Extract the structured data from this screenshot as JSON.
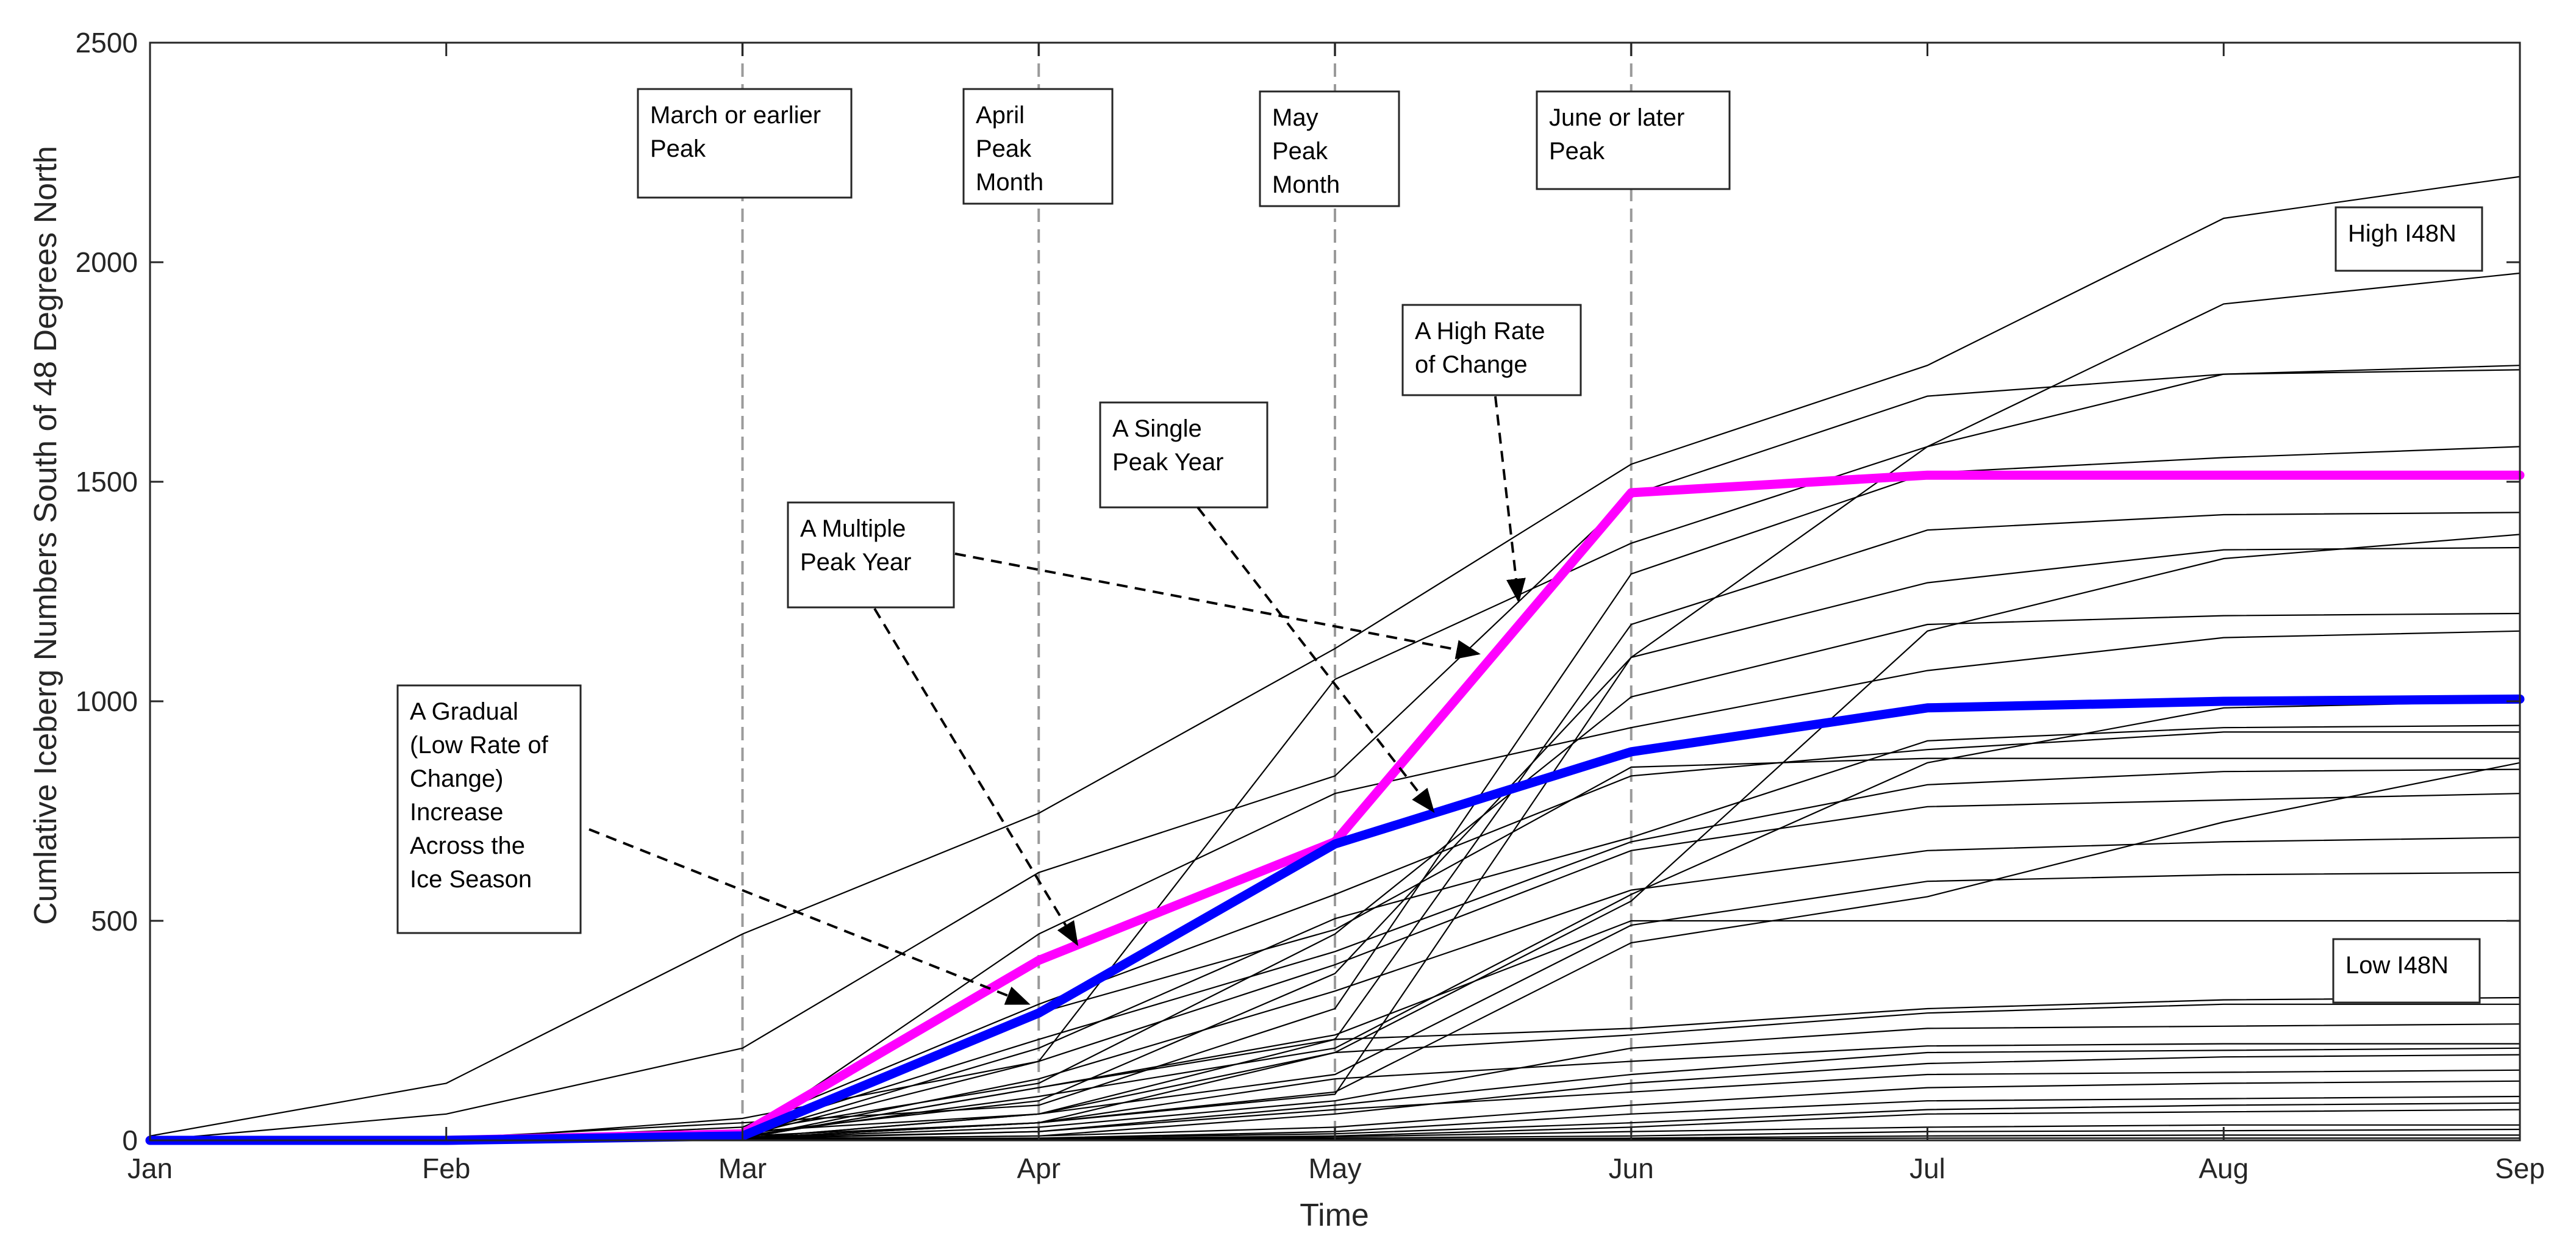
{
  "chart_data": {
    "type": "line",
    "xlabel": "Time",
    "ylabel": "Cumlative Iceberg Numbers South of 48 Degrees North",
    "categories": [
      "Jan",
      "Feb",
      "Mar",
      "Apr",
      "May",
      "Jun",
      "Jul",
      "Aug",
      "Sep"
    ],
    "ylim": [
      0,
      2500
    ],
    "yticks": [
      0,
      500,
      1000,
      1500,
      2000,
      2500
    ],
    "grid": false,
    "reference_lines": [
      {
        "x": 2,
        "label": "Mar"
      },
      {
        "x": 3,
        "label": "Apr"
      },
      {
        "x": 4,
        "label": "May"
      },
      {
        "x": 5,
        "label": "Jun"
      }
    ],
    "highlight_series": [
      {
        "name": "A Multiple Peak Year",
        "color": "#ff00ff",
        "values": [
          0,
          0,
          15,
          410,
          680,
          1475,
          1515,
          1515,
          1515
        ]
      },
      {
        "name": "A Single Peak Year",
        "color": "#0000ff",
        "values": [
          0,
          0,
          10,
          290,
          675,
          885,
          985,
          1000,
          1005
        ]
      }
    ],
    "series": [
      {
        "values": [
          10,
          130,
          470,
          745,
          1120,
          1540,
          1765,
          2100,
          2195
        ]
      },
      {
        "values": [
          0,
          60,
          210,
          610,
          830,
          1470,
          1695,
          1745,
          1765
        ]
      },
      {
        "values": [
          0,
          0,
          50,
          180,
          1050,
          1360,
          1580,
          1905,
          1975
        ]
      },
      {
        "values": [
          0,
          5,
          40,
          80,
          300,
          1290,
          1520,
          1555,
          1580
        ]
      },
      {
        "values": [
          0,
          0,
          20,
          60,
          230,
          1175,
          1390,
          1425,
          1430
        ]
      },
      {
        "values": [
          0,
          0,
          10,
          40,
          105,
          1100,
          1580,
          1745,
          1755
        ]
      },
      {
        "values": [
          0,
          0,
          15,
          90,
          380,
          1100,
          1270,
          1345,
          1350
        ]
      },
      {
        "values": [
          0,
          0,
          20,
          130,
          470,
          1010,
          1175,
          1195,
          1200
        ]
      },
      {
        "values": [
          0,
          0,
          10,
          470,
          790,
          940,
          1070,
          1145,
          1160
        ]
      },
      {
        "values": [
          0,
          0,
          5,
          40,
          200,
          545,
          1160,
          1325,
          1380
        ]
      },
      {
        "values": [
          0,
          0,
          30,
          310,
          560,
          830,
          890,
          930,
          930
        ]
      },
      {
        "values": [
          0,
          0,
          10,
          210,
          505,
          690,
          910,
          940,
          945
        ]
      },
      {
        "values": [
          0,
          0,
          15,
          290,
          480,
          850,
          870,
          870,
          870
        ]
      },
      {
        "values": [
          0,
          0,
          20,
          230,
          430,
          680,
          810,
          840,
          845
        ]
      },
      {
        "values": [
          0,
          0,
          10,
          180,
          400,
          660,
          760,
          775,
          790
        ]
      },
      {
        "values": [
          0,
          0,
          5,
          140,
          340,
          570,
          660,
          680,
          690
        ]
      },
      {
        "values": [
          0,
          0,
          10,
          100,
          210,
          560,
          860,
          985,
          1000
        ]
      },
      {
        "values": [
          0,
          0,
          5,
          60,
          150,
          490,
          590,
          605,
          610
        ]
      },
      {
        "values": [
          0,
          0,
          5,
          40,
          110,
          450,
          555,
          725,
          860
        ]
      },
      {
        "values": [
          0,
          0,
          5,
          120,
          240,
          500,
          500,
          500,
          500
        ]
      },
      {
        "values": [
          0,
          0,
          5,
          120,
          230,
          255,
          300,
          320,
          325
        ]
      },
      {
        "values": [
          0,
          0,
          5,
          60,
          200,
          240,
          290,
          310,
          310
        ]
      },
      {
        "values": [
          0,
          0,
          5,
          30,
          90,
          210,
          255,
          260,
          265
        ]
      },
      {
        "values": [
          0,
          0,
          5,
          40,
          140,
          180,
          215,
          220,
          220
        ]
      },
      {
        "values": [
          0,
          0,
          5,
          20,
          80,
          150,
          200,
          205,
          210
        ]
      },
      {
        "values": [
          0,
          0,
          3,
          10,
          60,
          130,
          175,
          190,
          195
        ]
      },
      {
        "values": [
          0,
          0,
          3,
          20,
          70,
          110,
          150,
          155,
          160
        ]
      },
      {
        "values": [
          0,
          0,
          2,
          10,
          30,
          80,
          120,
          130,
          135
        ]
      },
      {
        "values": [
          0,
          0,
          2,
          5,
          20,
          60,
          90,
          95,
          100
        ]
      },
      {
        "values": [
          0,
          0,
          1,
          5,
          15,
          40,
          70,
          80,
          85
        ]
      },
      {
        "values": [
          0,
          0,
          1,
          3,
          10,
          30,
          60,
          65,
          70
        ]
      },
      {
        "values": [
          0,
          0,
          1,
          2,
          8,
          20,
          30,
          35,
          35
        ]
      },
      {
        "values": [
          0,
          0,
          1,
          2,
          5,
          10,
          20,
          22,
          25
        ]
      },
      {
        "values": [
          0,
          0,
          0,
          1,
          2,
          5,
          10,
          12,
          12
        ]
      },
      {
        "values": [
          0,
          0,
          0,
          1,
          1,
          3,
          5,
          5,
          5
        ]
      }
    ],
    "annotations": [
      {
        "id": "march-peak",
        "lines": [
          "March or earlier",
          "Peak"
        ],
        "type": "label"
      },
      {
        "id": "april-peak",
        "lines": [
          "April",
          "Peak",
          "Month"
        ],
        "type": "label"
      },
      {
        "id": "may-peak",
        "lines": [
          "May",
          "Peak",
          "Month"
        ],
        "type": "label"
      },
      {
        "id": "june-peak",
        "lines": [
          "June or later",
          "Peak"
        ],
        "type": "label"
      },
      {
        "id": "high-i48n",
        "lines": [
          "High I48N"
        ],
        "type": "label"
      },
      {
        "id": "low-i48n",
        "lines": [
          "Low I48N"
        ],
        "type": "label"
      },
      {
        "id": "high-rate",
        "lines": [
          "A High Rate",
          "of Change"
        ],
        "type": "callout"
      },
      {
        "id": "single-peak",
        "lines": [
          "A Single",
          "Peak Year"
        ],
        "type": "callout"
      },
      {
        "id": "multiple-peak",
        "lines": [
          "A Multiple",
          "Peak Year"
        ],
        "type": "callout"
      },
      {
        "id": "gradual",
        "lines": [
          "A Gradual",
          "(Low Rate of",
          "Change)",
          "Increase",
          "Across the",
          "Ice Season"
        ],
        "type": "callout"
      }
    ]
  }
}
